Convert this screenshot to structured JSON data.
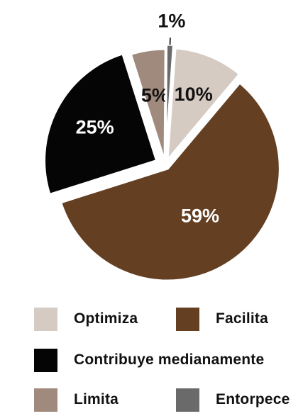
{
  "chart_data": {
    "type": "pie",
    "slices": [
      {
        "name": "Optimiza",
        "value": 10,
        "label": "10%",
        "color": "#d6cbc2",
        "label_color": "#111111"
      },
      {
        "name": "Facilita",
        "value": 59,
        "label": "59%",
        "color": "#643f22",
        "label_color": "#ffffff"
      },
      {
        "name": "Contribuye medianamente",
        "value": 25,
        "label": "25%",
        "color": "#050505",
        "label_color": "#ffffff"
      },
      {
        "name": "Limita",
        "value": 5,
        "label": "5%",
        "color": "#a08a7d",
        "label_color": "#111111"
      },
      {
        "name": "Entorpece",
        "value": 1,
        "label": "1%",
        "color": "#6a6a6a",
        "label_color": "#111111"
      }
    ],
    "legend_position": "bottom"
  }
}
